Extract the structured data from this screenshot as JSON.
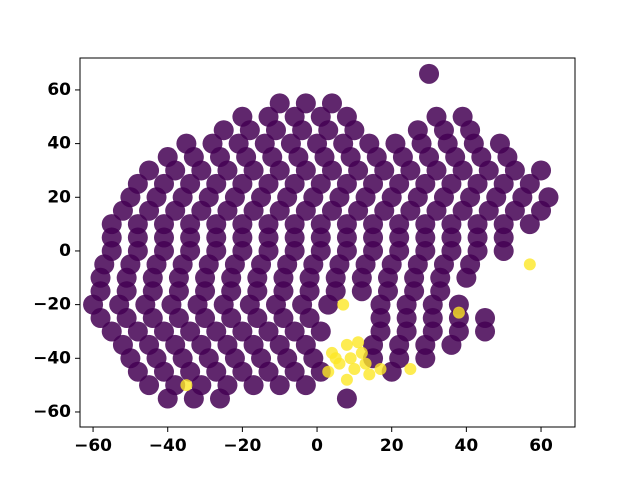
{
  "chart_data": {
    "type": "scatter",
    "xlim": [
      -63.5,
      69.1
    ],
    "ylim": [
      -65.6,
      71.9
    ],
    "xticks": [
      {
        "value": -60,
        "label": "−60"
      },
      {
        "value": -40,
        "label": "−40"
      },
      {
        "value": -20,
        "label": "−20"
      },
      0,
      20,
      40,
      60
    ],
    "yticks": [
      {
        "value": -60,
        "label": "−60"
      },
      {
        "value": -40,
        "label": "−40"
      },
      {
        "value": -20,
        "label": "−20"
      },
      0,
      20,
      40,
      60
    ],
    "series": [
      {
        "color": "#440154",
        "x": [
          -10,
          -3,
          4,
          -20,
          -13,
          -6,
          1,
          8,
          32,
          39,
          -25,
          -18,
          -11,
          -4,
          3,
          10,
          27,
          34,
          41,
          -35,
          -28,
          -21,
          -14,
          -7,
          0,
          7,
          14,
          21,
          28,
          35,
          42,
          49,
          -40,
          -33,
          -26,
          -19,
          -12,
          -5,
          2,
          9,
          16,
          23,
          30,
          37,
          44,
          51,
          -45,
          -38,
          -31,
          -24,
          -17,
          -10,
          -3,
          4,
          11,
          18,
          25,
          32,
          39,
          46,
          53,
          60,
          -48,
          -41,
          -34,
          -27,
          -20,
          -13,
          -6,
          1,
          8,
          15,
          22,
          29,
          36,
          43,
          50,
          57,
          -50,
          -43,
          -36,
          -29,
          -22,
          -15,
          -8,
          -1,
          6,
          13,
          20,
          27,
          34,
          41,
          48,
          55,
          62,
          -52,
          -45,
          -38,
          -31,
          -24,
          -17,
          -10,
          -3,
          4,
          11,
          18,
          25,
          32,
          39,
          46,
          53,
          60,
          -55,
          -48,
          -41,
          -34,
          -27,
          -20,
          -13,
          -6,
          1,
          8,
          15,
          22,
          29,
          36,
          43,
          50,
          57,
          -55,
          -48,
          -41,
          -34,
          -27,
          -20,
          -13,
          -6,
          1,
          8,
          15,
          22,
          29,
          36,
          43,
          50,
          -55,
          -48,
          -41,
          -34,
          -27,
          -20,
          -13,
          -6,
          1,
          8,
          15,
          22,
          29,
          36,
          43,
          50,
          -57,
          -50,
          -43,
          -36,
          -29,
          -22,
          -15,
          -8,
          -1,
          6,
          13,
          20,
          27,
          34,
          41,
          -58,
          -51,
          -44,
          -37,
          -30,
          -23,
          -16,
          -9,
          -2,
          5,
          12,
          19,
          26,
          33,
          40,
          -58,
          -51,
          -44,
          -37,
          -30,
          -23,
          -16,
          -9,
          -2,
          5,
          12,
          19,
          26,
          33,
          -60,
          -53,
          -46,
          -39,
          -32,
          -25,
          -18,
          -11,
          -4,
          3,
          17,
          24,
          31,
          38,
          -58,
          -51,
          -44,
          -37,
          -30,
          -23,
          -16,
          -9,
          -2,
          17,
          24,
          31,
          38,
          45,
          -55,
          -48,
          -41,
          -34,
          -27,
          -20,
          -13,
          -6,
          1,
          17,
          24,
          31,
          38,
          45,
          -52,
          -45,
          -38,
          -31,
          -24,
          -17,
          -10,
          -3,
          15,
          22,
          29,
          36,
          -50,
          -43,
          -36,
          -29,
          -22,
          -15,
          -8,
          -1,
          15,
          22,
          29,
          -48,
          -41,
          -34,
          -27,
          -20,
          -13,
          -6,
          1,
          20,
          -45,
          -38,
          -31,
          -24,
          -17,
          -10,
          -3,
          -40,
          -33,
          -26,
          8,
          30
        ],
        "values": [
          55,
          55,
          55,
          50,
          50,
          50,
          50,
          50,
          50,
          50,
          45,
          45,
          45,
          45,
          45,
          45,
          45,
          45,
          45,
          40,
          40,
          40,
          40,
          40,
          40,
          40,
          40,
          40,
          40,
          40,
          40,
          40,
          35,
          35,
          35,
          35,
          35,
          35,
          35,
          35,
          35,
          35,
          35,
          35,
          35,
          35,
          30,
          30,
          30,
          30,
          30,
          30,
          30,
          30,
          30,
          30,
          30,
          30,
          30,
          30,
          30,
          30,
          25,
          25,
          25,
          25,
          25,
          25,
          25,
          25,
          25,
          25,
          25,
          25,
          25,
          25,
          25,
          25,
          20,
          20,
          20,
          20,
          20,
          20,
          20,
          20,
          20,
          20,
          20,
          20,
          20,
          20,
          20,
          20,
          20,
          15,
          15,
          15,
          15,
          15,
          15,
          15,
          15,
          15,
          15,
          15,
          15,
          15,
          15,
          15,
          15,
          15,
          10,
          10,
          10,
          10,
          10,
          10,
          10,
          10,
          10,
          10,
          10,
          10,
          10,
          10,
          10,
          10,
          10,
          5,
          5,
          5,
          5,
          5,
          5,
          5,
          5,
          5,
          5,
          5,
          5,
          5,
          5,
          5,
          5,
          0,
          0,
          0,
          0,
          0,
          0,
          0,
          0,
          0,
          0,
          0,
          0,
          0,
          0,
          0,
          0,
          -5,
          -5,
          -5,
          -5,
          -5,
          -5,
          -5,
          -5,
          -5,
          -5,
          -5,
          -5,
          -5,
          -5,
          -5,
          -10,
          -10,
          -10,
          -10,
          -10,
          -10,
          -10,
          -10,
          -10,
          -10,
          -10,
          -10,
          -10,
          -10,
          -10,
          -15,
          -15,
          -15,
          -15,
          -15,
          -15,
          -15,
          -15,
          -15,
          -15,
          -15,
          -15,
          -15,
          -15,
          -20,
          -20,
          -20,
          -20,
          -20,
          -20,
          -20,
          -20,
          -20,
          -20,
          -20,
          -20,
          -20,
          -20,
          -25,
          -25,
          -25,
          -25,
          -25,
          -25,
          -25,
          -25,
          -25,
          -25,
          -25,
          -25,
          -25,
          -25,
          -30,
          -30,
          -30,
          -30,
          -30,
          -30,
          -30,
          -30,
          -30,
          -30,
          -30,
          -30,
          -30,
          -30,
          -35,
          -35,
          -35,
          -35,
          -35,
          -35,
          -35,
          -35,
          -35,
          -35,
          -35,
          -35,
          -40,
          -40,
          -40,
          -40,
          -40,
          -40,
          -40,
          -40,
          -40,
          -40,
          -40,
          -45,
          -45,
          -45,
          -45,
          -45,
          -45,
          -45,
          -45,
          -45,
          -50,
          -50,
          -50,
          -50,
          -50,
          -50,
          -50,
          -55,
          -55,
          -55,
          -55,
          66
        ]
      },
      {
        "color": "#fde725",
        "x": [
          7,
          38,
          57,
          25,
          -35,
          4,
          8,
          12,
          6,
          10,
          3,
          8,
          13,
          5,
          11,
          14,
          17,
          9
        ],
        "values": [
          -20,
          -23,
          -5,
          -44,
          -50,
          -38,
          -35,
          -38,
          -42,
          -44,
          -45,
          -48,
          -42,
          -40,
          -34,
          -46,
          -44,
          -40
        ]
      }
    ]
  }
}
